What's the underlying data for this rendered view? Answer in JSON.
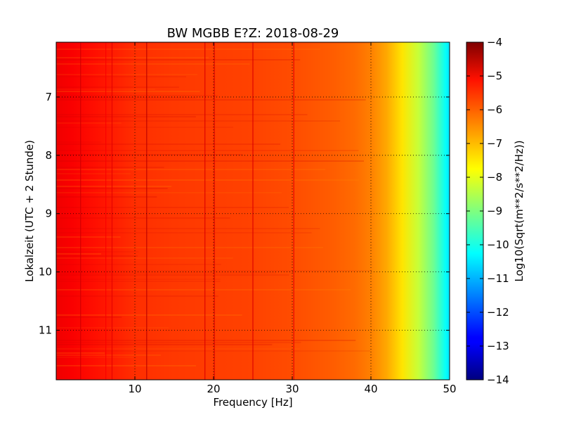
{
  "chart_data": {
    "type": "heatmap",
    "title": "BW MGBB E?Z: 2018-08-29",
    "xlabel": "Frequency [Hz]",
    "ylabel": "Lokalzeit (UTC + 2 Stunde)",
    "xlim": [
      0,
      50
    ],
    "ylim": [
      6.06,
      11.85
    ],
    "y_inverted": true,
    "x_ticks": [
      10,
      20,
      30,
      40,
      50
    ],
    "y_ticks": [
      7,
      8,
      9,
      10,
      11
    ],
    "grid": true,
    "colormap": "jet",
    "colorbar": {
      "label": "Log10(Sqrt(m**2/s**2/Hz))",
      "range": [
        -14,
        -4
      ],
      "ticks": [
        -14,
        -13,
        -12,
        -11,
        -10,
        -9,
        -8,
        -7,
        -6,
        -5,
        -4
      ]
    },
    "level_profile": {
      "frequency_hz": [
        0,
        2,
        5,
        10,
        15,
        20,
        25,
        30,
        35,
        38,
        40,
        42,
        44,
        46,
        48,
        49.5,
        50
      ],
      "log10_psd": [
        -5.1,
        -5.2,
        -5.4,
        -5.7,
        -5.8,
        -5.85,
        -5.9,
        -6.0,
        -6.15,
        -6.3,
        -6.5,
        -6.9,
        -7.5,
        -8.3,
        -9.2,
        -10.2,
        -10.5
      ]
    },
    "spectral_lines": [
      {
        "frequency_hz": 3.1,
        "log10_psd": -4.8
      },
      {
        "frequency_hz": 6.3,
        "log10_psd": -5.2
      },
      {
        "frequency_hz": 7.1,
        "log10_psd": -5.0
      },
      {
        "frequency_hz": 11.5,
        "log10_psd": -4.6
      },
      {
        "frequency_hz": 18.9,
        "log10_psd": -4.9
      },
      {
        "frequency_hz": 20.1,
        "log10_psd": -4.9
      },
      {
        "frequency_hz": 25.0,
        "log10_psd": -4.9
      },
      {
        "frequency_hz": 30.2,
        "log10_psd": -5.0
      }
    ]
  }
}
